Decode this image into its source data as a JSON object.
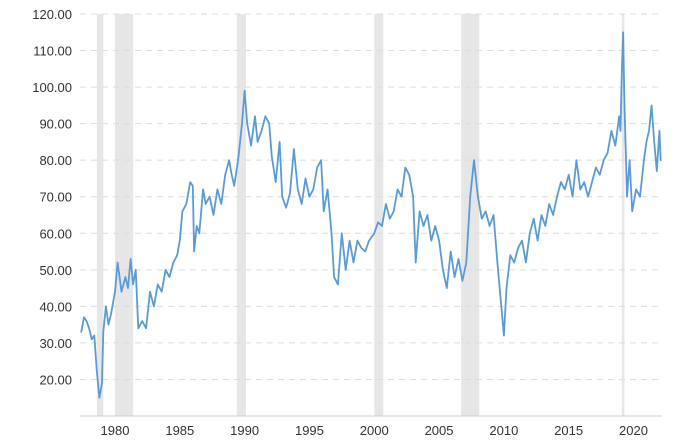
{
  "chart_data": {
    "type": "line",
    "title": "",
    "xlabel": "",
    "ylabel": "",
    "xlim": [
      1977.3,
      2022.2
    ],
    "ylim": [
      10,
      120
    ],
    "grid": true,
    "y_ticks": [
      20,
      30,
      40,
      50,
      60,
      70,
      80,
      90,
      100,
      110,
      120
    ],
    "y_tick_labels": [
      "20.00",
      "30.00",
      "40.00",
      "50.00",
      "60.00",
      "70.00",
      "80.00",
      "90.00",
      "100.00",
      "110.00",
      "120.00"
    ],
    "x_ticks": [
      1980,
      1985,
      1990,
      1995,
      2000,
      2005,
      2010,
      2015,
      2020
    ],
    "x_tick_labels": [
      "1980",
      "1985",
      "1990",
      "1995",
      "2000",
      "2005",
      "2010",
      "2015",
      "2020"
    ],
    "recession_bands": [
      [
        1978.6,
        1979.1
      ],
      [
        1980.0,
        1981.4
      ],
      [
        1989.4,
        1990.1
      ],
      [
        2000.0,
        2000.7
      ],
      [
        2006.7,
        2008.1
      ],
      [
        2019.1,
        2019.3
      ]
    ],
    "colors": {
      "line": "#5b9bd5",
      "band": "#e6e6e6"
    },
    "series": [
      {
        "name": "",
        "points": [
          [
            1977.4,
            33
          ],
          [
            1977.6,
            37
          ],
          [
            1977.8,
            36
          ],
          [
            1978.0,
            34
          ],
          [
            1978.2,
            31
          ],
          [
            1978.4,
            32
          ],
          [
            1978.6,
            22
          ],
          [
            1978.8,
            15
          ],
          [
            1979.0,
            19
          ],
          [
            1979.1,
            33
          ],
          [
            1979.3,
            40
          ],
          [
            1979.5,
            35
          ],
          [
            1979.7,
            38
          ],
          [
            1980.0,
            44
          ],
          [
            1980.2,
            52
          ],
          [
            1980.5,
            44
          ],
          [
            1980.8,
            48
          ],
          [
            1981.0,
            45
          ],
          [
            1981.2,
            53
          ],
          [
            1981.4,
            46
          ],
          [
            1981.6,
            50
          ],
          [
            1981.8,
            34
          ],
          [
            1982.1,
            36
          ],
          [
            1982.4,
            34
          ],
          [
            1982.7,
            44
          ],
          [
            1983.0,
            40
          ],
          [
            1983.3,
            46
          ],
          [
            1983.6,
            44
          ],
          [
            1983.9,
            50
          ],
          [
            1984.2,
            48
          ],
          [
            1984.5,
            52
          ],
          [
            1984.8,
            54
          ],
          [
            1985.0,
            58
          ],
          [
            1985.2,
            66
          ],
          [
            1985.5,
            68
          ],
          [
            1985.8,
            74
          ],
          [
            1986.0,
            73
          ],
          [
            1986.1,
            55
          ],
          [
            1986.3,
            62
          ],
          [
            1986.5,
            60
          ],
          [
            1986.8,
            72
          ],
          [
            1987.0,
            68
          ],
          [
            1987.3,
            70
          ],
          [
            1987.6,
            65
          ],
          [
            1987.9,
            72
          ],
          [
            1988.2,
            68
          ],
          [
            1988.5,
            76
          ],
          [
            1988.8,
            80
          ],
          [
            1989.0,
            76
          ],
          [
            1989.2,
            73
          ],
          [
            1989.5,
            80
          ],
          [
            1989.8,
            90
          ],
          [
            1990.0,
            99
          ],
          [
            1990.2,
            90
          ],
          [
            1990.5,
            84
          ],
          [
            1990.8,
            92
          ],
          [
            1991.0,
            85
          ],
          [
            1991.3,
            88
          ],
          [
            1991.6,
            92
          ],
          [
            1991.9,
            90
          ],
          [
            1992.1,
            81
          ],
          [
            1992.4,
            74
          ],
          [
            1992.7,
            85
          ],
          [
            1992.9,
            70
          ],
          [
            1993.2,
            67
          ],
          [
            1993.5,
            71
          ],
          [
            1993.8,
            83
          ],
          [
            1994.1,
            72
          ],
          [
            1994.4,
            68
          ],
          [
            1994.7,
            75
          ],
          [
            1995.0,
            70
          ],
          [
            1995.3,
            72
          ],
          [
            1995.6,
            78
          ],
          [
            1995.9,
            80
          ],
          [
            1996.1,
            66
          ],
          [
            1996.4,
            72
          ],
          [
            1996.7,
            60
          ],
          [
            1996.9,
            48
          ],
          [
            1997.2,
            46
          ],
          [
            1997.5,
            60
          ],
          [
            1997.8,
            50
          ],
          [
            1998.1,
            58
          ],
          [
            1998.4,
            52
          ],
          [
            1998.7,
            58
          ],
          [
            1999.0,
            56
          ],
          [
            1999.3,
            55
          ],
          [
            1999.6,
            58
          ],
          [
            2000.0,
            60
          ],
          [
            2000.3,
            63
          ],
          [
            2000.6,
            62
          ],
          [
            2000.9,
            68
          ],
          [
            2001.2,
            64
          ],
          [
            2001.5,
            66
          ],
          [
            2001.8,
            72
          ],
          [
            2002.1,
            70
          ],
          [
            2002.4,
            78
          ],
          [
            2002.7,
            76
          ],
          [
            2003.0,
            70
          ],
          [
            2003.2,
            52
          ],
          [
            2003.5,
            66
          ],
          [
            2003.8,
            62
          ],
          [
            2004.1,
            65
          ],
          [
            2004.4,
            58
          ],
          [
            2004.7,
            62
          ],
          [
            2005.0,
            58
          ],
          [
            2005.3,
            50
          ],
          [
            2005.6,
            45
          ],
          [
            2005.9,
            55
          ],
          [
            2006.2,
            48
          ],
          [
            2006.5,
            53
          ],
          [
            2006.8,
            47
          ],
          [
            2007.1,
            52
          ],
          [
            2007.4,
            70
          ],
          [
            2007.7,
            80
          ],
          [
            2008.0,
            70
          ],
          [
            2008.3,
            64
          ],
          [
            2008.6,
            66
          ],
          [
            2008.9,
            62
          ],
          [
            2009.2,
            65
          ],
          [
            2009.5,
            52
          ],
          [
            2009.8,
            40
          ],
          [
            2010.0,
            32
          ],
          [
            2010.2,
            45
          ],
          [
            2010.5,
            54
          ],
          [
            2010.8,
            52
          ],
          [
            2011.1,
            56
          ],
          [
            2011.4,
            58
          ],
          [
            2011.7,
            52
          ],
          [
            2012.0,
            60
          ],
          [
            2012.3,
            64
          ],
          [
            2012.6,
            58
          ],
          [
            2012.9,
            65
          ],
          [
            2013.2,
            62
          ],
          [
            2013.5,
            68
          ],
          [
            2013.8,
            65
          ],
          [
            2014.1,
            70
          ],
          [
            2014.4,
            74
          ],
          [
            2014.7,
            72
          ],
          [
            2015.0,
            76
          ],
          [
            2015.3,
            70
          ],
          [
            2015.6,
            80
          ],
          [
            2015.9,
            72
          ],
          [
            2016.2,
            74
          ],
          [
            2016.5,
            70
          ],
          [
            2016.8,
            74
          ],
          [
            2017.1,
            78
          ],
          [
            2017.4,
            76
          ],
          [
            2017.7,
            80
          ],
          [
            2018.0,
            82
          ],
          [
            2018.3,
            88
          ],
          [
            2018.6,
            84
          ],
          [
            2018.9,
            92
          ],
          [
            2019.0,
            88
          ],
          [
            2019.1,
            104
          ],
          [
            2019.2,
            115
          ],
          [
            2019.3,
            96
          ],
          [
            2019.5,
            70
          ],
          [
            2019.7,
            80
          ],
          [
            2019.9,
            66
          ],
          [
            2020.2,
            72
          ],
          [
            2020.5,
            70
          ],
          [
            2020.8,
            80
          ],
          [
            2021.0,
            85
          ],
          [
            2021.2,
            88
          ],
          [
            2021.4,
            95
          ],
          [
            2021.6,
            85
          ],
          [
            2021.8,
            77
          ],
          [
            2022.0,
            88
          ],
          [
            2022.1,
            80
          ]
        ]
      }
    ]
  }
}
